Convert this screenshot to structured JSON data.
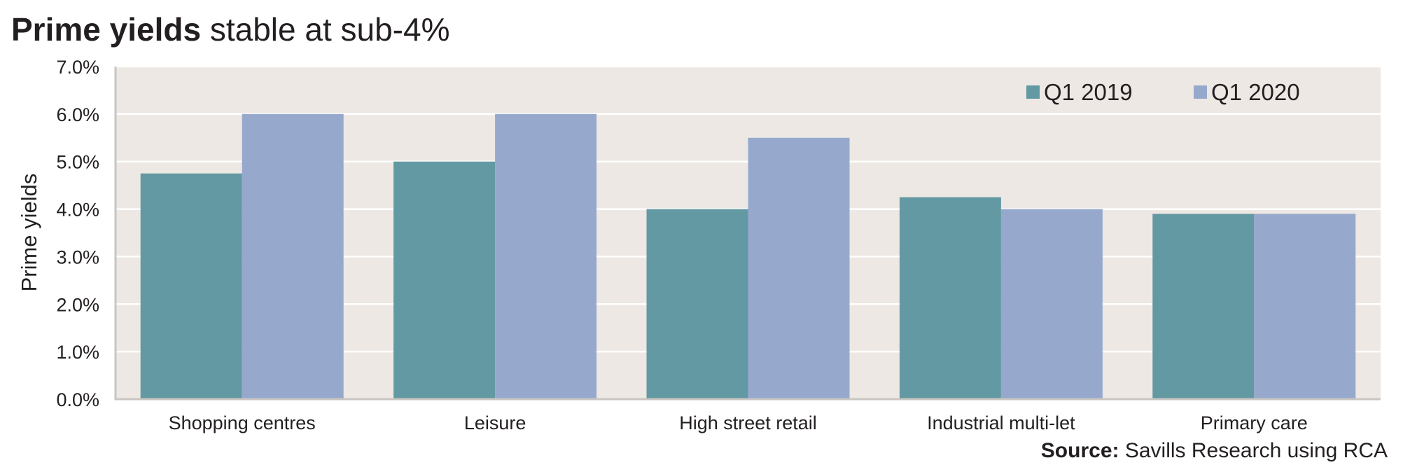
{
  "header": {
    "title_bold": "Prime yields",
    "title_light": "stable at sub-4%"
  },
  "source": {
    "label": "Source:",
    "text": "Savills Research using RCA"
  },
  "colors": {
    "plot_background": "#ede8e3",
    "gridline": "#ffffff",
    "axis": "#c9c5c2",
    "series_q1_2019": "#6399a3",
    "series_q1_2020": "#96a9cd",
    "text": "#231f20"
  },
  "chart_data": {
    "type": "bar",
    "title": "Prime yields stable at sub-4%",
    "xlabel": "",
    "ylabel": "Prime yields",
    "categories": [
      "Shopping centres",
      "Leisure",
      "High street retail",
      "Industrial multi-let",
      "Primary care"
    ],
    "series": [
      {
        "name": "Q1 2019",
        "values": [
          4.75,
          5.0,
          4.0,
          4.25,
          3.9
        ]
      },
      {
        "name": "Q1 2020",
        "values": [
          6.0,
          6.0,
          5.5,
          4.0,
          3.9
        ]
      }
    ],
    "ylim": [
      0,
      7
    ],
    "yticks": [
      0,
      1,
      2,
      3,
      4,
      5,
      6,
      7
    ],
    "ytick_labels": [
      "0.0%",
      "1.0%",
      "2.0%",
      "3.0%",
      "4.0%",
      "5.0%",
      "6.0%",
      "7.0%"
    ],
    "grid": true,
    "legend": "top-right",
    "units": "%"
  }
}
